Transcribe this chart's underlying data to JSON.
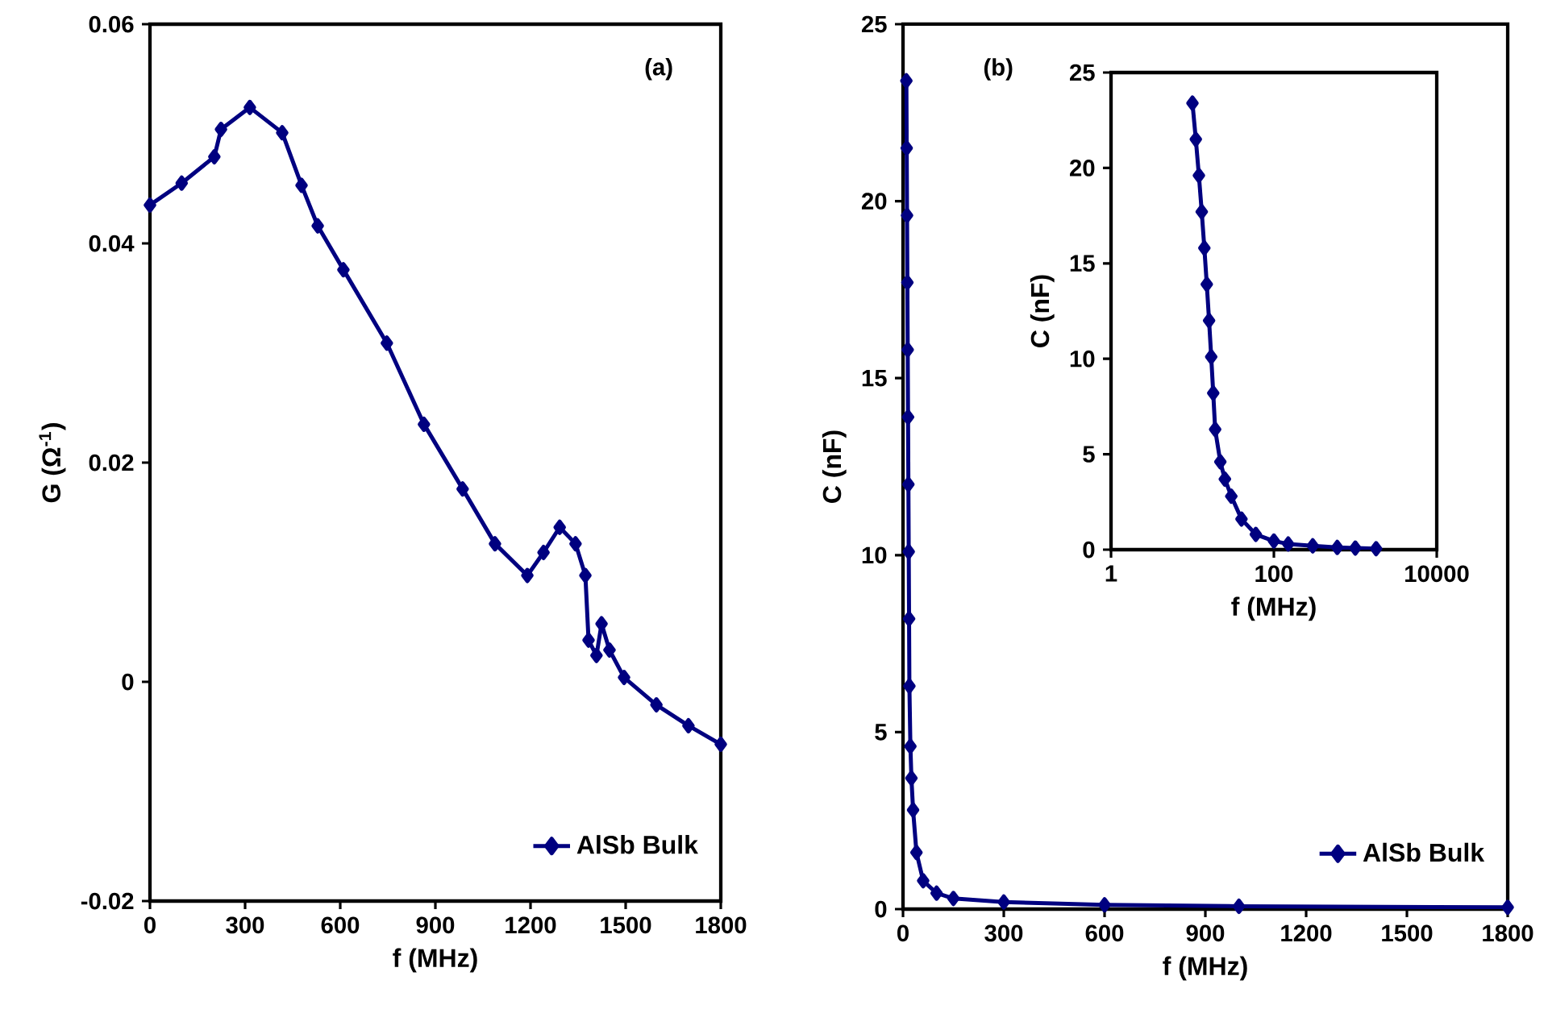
{
  "chart_data": [
    {
      "type": "line",
      "xlabel": "f (MHz)",
      "ylabel": "G (Ω$^{-1}$)",
      "annotations": [
        "(a)"
      ],
      "xlim": [
        0,
        1800
      ],
      "ylim": [
        -0.02,
        0.06
      ],
      "xticks": [
        0,
        300,
        600,
        900,
        1200,
        1500,
        1800
      ],
      "yticks": [
        -0.02,
        0,
        0.02,
        0.04,
        0.06
      ],
      "marker": "diamond",
      "legend": "bottom right",
      "series": [
        {
          "name": "AlSb Bulk",
          "color": "#000080",
          "x": [
            0,
            100,
            203,
            224,
            315,
            417,
            478,
            529,
            610,
            747,
            864,
            986,
            1088,
            1190,
            1241,
            1292,
            1342,
            1373,
            1383,
            1408,
            1424,
            1449,
            1495,
            1597,
            1698,
            1800
          ],
          "values": [
            0.0435,
            0.0455,
            0.0479,
            0.0504,
            0.0524,
            0.0501,
            0.0453,
            0.0416,
            0.0376,
            0.0309,
            0.0235,
            0.0176,
            0.0126,
            0.0097,
            0.0118,
            0.0141,
            0.0126,
            0.0097,
            0.0038,
            0.0024,
            0.0053,
            0.0029,
            0.0004,
            -0.0021,
            -0.004,
            -0.0057
          ]
        }
      ]
    },
    {
      "type": "line",
      "xlabel": "f (MHz)",
      "ylabel": "C (nF)",
      "annotations": [
        "(b)"
      ],
      "xlim": [
        0,
        1800
      ],
      "ylim": [
        0,
        25
      ],
      "xticks": [
        0,
        300,
        600,
        900,
        1200,
        1500,
        1800
      ],
      "yticks": [
        0,
        5,
        10,
        15,
        20,
        25
      ],
      "marker": "diamond",
      "legend": "bottom right",
      "series": [
        {
          "name": "AlSb Bulk",
          "color": "#000080",
          "x": [
            10,
            11,
            12,
            13,
            14,
            15,
            16,
            17,
            18,
            19,
            22,
            25,
            30,
            40,
            60,
            100,
            150,
            300,
            600,
            1000,
            1800
          ],
          "values": [
            23.4,
            21.5,
            19.6,
            17.7,
            15.8,
            13.9,
            12.0,
            10.1,
            8.2,
            6.3,
            4.6,
            3.7,
            2.8,
            1.6,
            0.8,
            0.45,
            0.3,
            0.2,
            0.12,
            0.08,
            0.05
          ]
        }
      ]
    },
    {
      "type": "line",
      "xlabel": "f (MHz)",
      "ylabel": "C (nF)",
      "log": "x",
      "xlim": [
        1,
        10000
      ],
      "ylim": [
        0,
        25
      ],
      "xticks": [
        1,
        100,
        10000
      ],
      "yticks": [
        0,
        5,
        10,
        15,
        20,
        25
      ],
      "marker": "diamond",
      "series": [
        {
          "color": "#000080",
          "x": [
            10,
            11,
            12,
            13,
            14,
            15,
            16,
            17,
            18,
            19,
            22,
            25,
            30,
            40,
            60,
            100,
            150,
            300,
            600,
            1000,
            1800
          ],
          "values": [
            23.4,
            21.5,
            19.6,
            17.7,
            15.8,
            13.9,
            12.0,
            10.1,
            8.2,
            6.3,
            4.6,
            3.7,
            2.8,
            1.6,
            0.8,
            0.45,
            0.3,
            0.2,
            0.12,
            0.08,
            0.05
          ]
        }
      ]
    }
  ]
}
